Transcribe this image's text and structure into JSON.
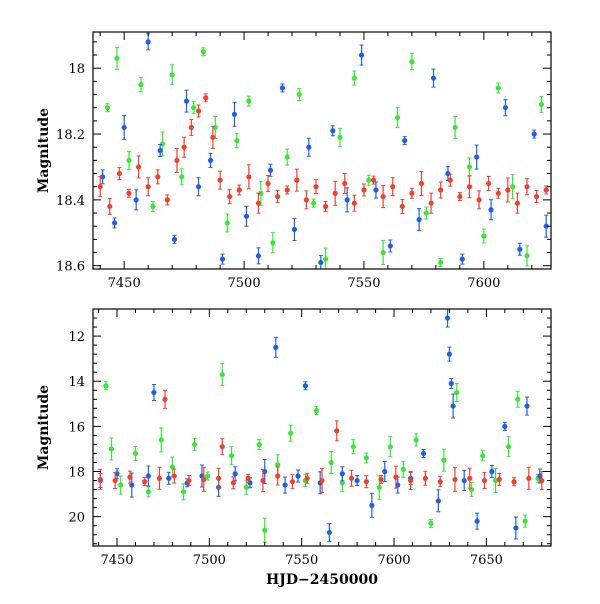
{
  "chart_data": [
    {
      "type": "scatter",
      "panel": "top",
      "xlabel": "",
      "ylabel": "Magnitude",
      "xlim": [
        7437,
        7628
      ],
      "ylim": [
        18.61,
        17.89
      ],
      "y_inverted": true,
      "x_ticks": [
        7450,
        7500,
        7550,
        7600
      ],
      "y_ticks": [
        18.0,
        18.2,
        18.4,
        18.6
      ],
      "y_tick_labels": [
        "18",
        "18.2",
        "18.4",
        "18.6"
      ],
      "error_bars": true,
      "series": [
        {
          "color": "#39e639",
          "values": [
            [
              7443,
              18.12
            ],
            [
              7447,
              17.97
            ],
            [
              7452,
              18.28
            ],
            [
              7457,
              18.05
            ],
            [
              7462,
              18.42
            ],
            [
              7466,
              18.23
            ],
            [
              7470,
              18.02
            ],
            [
              7474,
              18.33
            ],
            [
              7479,
              18.12
            ],
            [
              7483,
              17.95
            ],
            [
              7488,
              18.18
            ],
            [
              7493,
              18.47
            ],
            [
              7497,
              18.22
            ],
            [
              7502,
              18.1
            ],
            [
              7507,
              18.38
            ],
            [
              7512,
              18.53
            ],
            [
              7518,
              18.27
            ],
            [
              7523,
              18.08
            ],
            [
              7529,
              18.41
            ],
            [
              7534,
              18.58
            ],
            [
              7540,
              18.21
            ],
            [
              7546,
              18.03
            ],
            [
              7552,
              18.34
            ],
            [
              7558,
              18.56
            ],
            [
              7564,
              18.15
            ],
            [
              7570,
              17.98
            ],
            [
              7576,
              18.44
            ],
            [
              7582,
              18.59
            ],
            [
              7588,
              18.18
            ],
            [
              7594,
              18.3
            ],
            [
              7600,
              18.51
            ],
            [
              7606,
              18.06
            ],
            [
              7612,
              18.36
            ],
            [
              7618,
              18.57
            ],
            [
              7624,
              18.11
            ]
          ]
        },
        {
          "color": "#1f5fe8",
          "values": [
            [
              7441,
              18.33
            ],
            [
              7446,
              18.47
            ],
            [
              7450,
              18.18
            ],
            [
              7455,
              18.4
            ],
            [
              7460,
              17.92
            ],
            [
              7465,
              18.25
            ],
            [
              7471,
              18.52
            ],
            [
              7476,
              18.1
            ],
            [
              7481,
              18.36
            ],
            [
              7486,
              18.28
            ],
            [
              7491,
              18.58
            ],
            [
              7496,
              18.14
            ],
            [
              7501,
              18.45
            ],
            [
              7506,
              18.57
            ],
            [
              7511,
              18.31
            ],
            [
              7516,
              18.06
            ],
            [
              7521,
              18.49
            ],
            [
              7527,
              18.24
            ],
            [
              7532,
              18.59
            ],
            [
              7537,
              18.19
            ],
            [
              7543,
              18.4
            ],
            [
              7549,
              17.96
            ],
            [
              7555,
              18.37
            ],
            [
              7561,
              18.54
            ],
            [
              7567,
              18.22
            ],
            [
              7573,
              18.46
            ],
            [
              7579,
              18.03
            ],
            [
              7585,
              18.32
            ],
            [
              7591,
              18.58
            ],
            [
              7597,
              18.27
            ],
            [
              7603,
              18.43
            ],
            [
              7609,
              18.12
            ],
            [
              7615,
              18.55
            ],
            [
              7621,
              18.2
            ],
            [
              7626,
              18.48
            ]
          ]
        },
        {
          "color": "#f04030",
          "values": [
            [
              7440,
              18.36
            ],
            [
              7444,
              18.42
            ],
            [
              7448,
              18.32
            ],
            [
              7452,
              18.38
            ],
            [
              7456,
              18.3
            ],
            [
              7460,
              18.36
            ],
            [
              7464,
              18.33
            ],
            [
              7468,
              18.4
            ],
            [
              7472,
              18.28
            ],
            [
              7475,
              18.24
            ],
            [
              7478,
              18.18
            ],
            [
              7481,
              18.13
            ],
            [
              7484,
              18.09
            ],
            [
              7487,
              18.21
            ],
            [
              7490,
              18.34
            ],
            [
              7494,
              18.39
            ],
            [
              7498,
              18.37
            ],
            [
              7502,
              18.33
            ],
            [
              7506,
              18.41
            ],
            [
              7510,
              18.35
            ],
            [
              7514,
              18.39
            ],
            [
              7518,
              18.37
            ],
            [
              7522,
              18.34
            ],
            [
              7526,
              18.4
            ],
            [
              7530,
              18.36
            ],
            [
              7534,
              18.42
            ],
            [
              7538,
              18.38
            ],
            [
              7542,
              18.35
            ],
            [
              7546,
              18.41
            ],
            [
              7550,
              18.37
            ],
            [
              7554,
              18.34
            ],
            [
              7558,
              18.39
            ],
            [
              7562,
              18.36
            ],
            [
              7566,
              18.42
            ],
            [
              7570,
              18.38
            ],
            [
              7574,
              18.35
            ],
            [
              7578,
              18.41
            ],
            [
              7582,
              18.37
            ],
            [
              7586,
              18.34
            ],
            [
              7590,
              18.39
            ],
            [
              7594,
              18.36
            ],
            [
              7598,
              18.4
            ],
            [
              7602,
              18.35
            ],
            [
              7606,
              18.38
            ],
            [
              7610,
              18.37
            ],
            [
              7614,
              18.41
            ],
            [
              7618,
              18.36
            ],
            [
              7622,
              18.39
            ],
            [
              7626,
              18.37
            ]
          ]
        }
      ]
    },
    {
      "type": "scatter",
      "panel": "bottom",
      "xlabel": "HJD−2450000",
      "ylabel": "Magnitude",
      "xlim": [
        7437,
        7685
      ],
      "ylim": [
        21.3,
        10.8
      ],
      "y_inverted": true,
      "x_ticks": [
        7450,
        7500,
        7550,
        7600,
        7650
      ],
      "y_ticks": [
        12,
        14,
        16,
        18,
        20
      ],
      "y_tick_labels": [
        "12",
        "14",
        "16",
        "18",
        "20"
      ],
      "error_bars": true,
      "series": [
        {
          "color": "#39e639",
          "values": [
            [
              7444,
              14.2
            ],
            [
              7447,
              17.0
            ],
            [
              7452,
              18.6
            ],
            [
              7460,
              17.2
            ],
            [
              7467,
              18.9
            ],
            [
              7474,
              16.6
            ],
            [
              7480,
              17.8
            ],
            [
              7486,
              18.9
            ],
            [
              7492,
              16.8
            ],
            [
              7499,
              18.2
            ],
            [
              7507,
              13.7
            ],
            [
              7512,
              17.3
            ],
            [
              7520,
              18.7
            ],
            [
              7527,
              16.8
            ],
            [
              7530,
              20.6
            ],
            [
              7537,
              17.7
            ],
            [
              7544,
              16.3
            ],
            [
              7552,
              18.4
            ],
            [
              7558,
              15.3
            ],
            [
              7566,
              17.6
            ],
            [
              7572,
              18.5
            ],
            [
              7578,
              16.9
            ],
            [
              7585,
              17.4
            ],
            [
              7592,
              18.7
            ],
            [
              7598,
              16.9
            ],
            [
              7605,
              17.9
            ],
            [
              7612,
              16.6
            ],
            [
              7620,
              20.3
            ],
            [
              7627,
              17.5
            ],
            [
              7634,
              14.5
            ],
            [
              7642,
              18.8
            ],
            [
              7648,
              17.3
            ],
            [
              7655,
              18.4
            ],
            [
              7662,
              16.9
            ],
            [
              7667,
              14.8
            ],
            [
              7671,
              20.2
            ],
            [
              7678,
              18.3
            ]
          ]
        },
        {
          "color": "#1f5fe8",
          "values": [
            [
              7441,
              18.4
            ],
            [
              7450,
              18.1
            ],
            [
              7458,
              18.6
            ],
            [
              7467,
              18.2
            ],
            [
              7470,
              14.5
            ],
            [
              7478,
              18.3
            ],
            [
              7488,
              18.5
            ],
            [
              7496,
              18.2
            ],
            [
              7505,
              18.7
            ],
            [
              7514,
              18.1
            ],
            [
              7522,
              18.5
            ],
            [
              7530,
              18.0
            ],
            [
              7536,
              12.5
            ],
            [
              7541,
              18.6
            ],
            [
              7548,
              18.2
            ],
            [
              7552,
              14.2
            ],
            [
              7560,
              18.5
            ],
            [
              7565,
              20.7
            ],
            [
              7572,
              18.1
            ],
            [
              7580,
              18.4
            ],
            [
              7588,
              19.5
            ],
            [
              7595,
              18.0
            ],
            [
              7602,
              18.6
            ],
            [
              7609,
              18.3
            ],
            [
              7616,
              17.2
            ],
            [
              7624,
              19.3
            ],
            [
              7629,
              11.2
            ],
            [
              7630,
              12.8
            ],
            [
              7631,
              14.1
            ],
            [
              7632,
              15.1
            ],
            [
              7638,
              18.4
            ],
            [
              7645,
              20.2
            ],
            [
              7653,
              18.0
            ],
            [
              7660,
              16.0
            ],
            [
              7666,
              20.5
            ],
            [
              7672,
              15.1
            ],
            [
              7679,
              18.2
            ]
          ]
        },
        {
          "color": "#f04030",
          "values": [
            [
              7441,
              18.35
            ],
            [
              7449,
              18.4
            ],
            [
              7457,
              18.25
            ],
            [
              7465,
              18.45
            ],
            [
              7473,
              18.3
            ],
            [
              7476,
              14.8
            ],
            [
              7481,
              18.2
            ],
            [
              7489,
              18.4
            ],
            [
              7497,
              18.35
            ],
            [
              7505,
              18.3
            ],
            [
              7507,
              16.9
            ],
            [
              7513,
              18.5
            ],
            [
              7521,
              18.3
            ],
            [
              7529,
              18.4
            ],
            [
              7537,
              18.2
            ],
            [
              7545,
              18.45
            ],
            [
              7553,
              18.3
            ],
            [
              7561,
              18.4
            ],
            [
              7569,
              16.2
            ],
            [
              7577,
              18.3
            ],
            [
              7585,
              18.45
            ],
            [
              7593,
              18.35
            ],
            [
              7601,
              18.25
            ],
            [
              7609,
              18.4
            ],
            [
              7617,
              18.3
            ],
            [
              7625,
              18.45
            ],
            [
              7633,
              18.35
            ],
            [
              7641,
              18.3
            ],
            [
              7649,
              18.4
            ],
            [
              7657,
              18.35
            ],
            [
              7665,
              18.45
            ],
            [
              7673,
              18.3
            ],
            [
              7680,
              18.4
            ]
          ]
        }
      ]
    }
  ]
}
